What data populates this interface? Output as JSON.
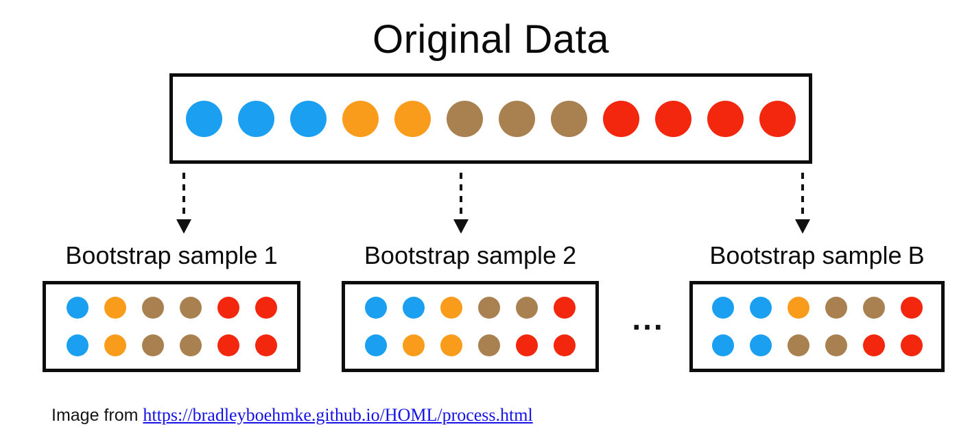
{
  "title": "Original Data",
  "colors": {
    "blue": "#1B9FF0",
    "orange": "#FA9C1B",
    "brown": "#A9804F",
    "red": "#F2270E"
  },
  "original": {
    "dots": [
      "blue",
      "blue",
      "blue",
      "orange",
      "orange",
      "brown",
      "brown",
      "brown",
      "red",
      "red",
      "red",
      "red"
    ]
  },
  "samples": [
    {
      "label_prefix": "Bootstrap sample",
      "label_suffix": "1",
      "rows": [
        [
          "blue",
          "orange",
          "brown",
          "brown",
          "red",
          "red"
        ],
        [
          "blue",
          "orange",
          "brown",
          "brown",
          "red",
          "red"
        ]
      ]
    },
    {
      "label_prefix": "Bootstrap sample",
      "label_suffix": "2",
      "rows": [
        [
          "blue",
          "blue",
          "orange",
          "brown",
          "brown",
          "red"
        ],
        [
          "blue",
          "orange",
          "orange",
          "brown",
          "red",
          "red"
        ]
      ]
    },
    {
      "label_prefix": "Bootstrap sample",
      "label_suffix": "B",
      "rows": [
        [
          "blue",
          "blue",
          "orange",
          "brown",
          "brown",
          "red"
        ],
        [
          "blue",
          "blue",
          "brown",
          "brown",
          "red",
          "red"
        ]
      ]
    }
  ],
  "ellipsis": "...",
  "caption": {
    "prefix": "Image from",
    "link_text": "https://bradleyboehmke.github.io/HOML/process.html",
    "link_color": "#1512E8"
  }
}
